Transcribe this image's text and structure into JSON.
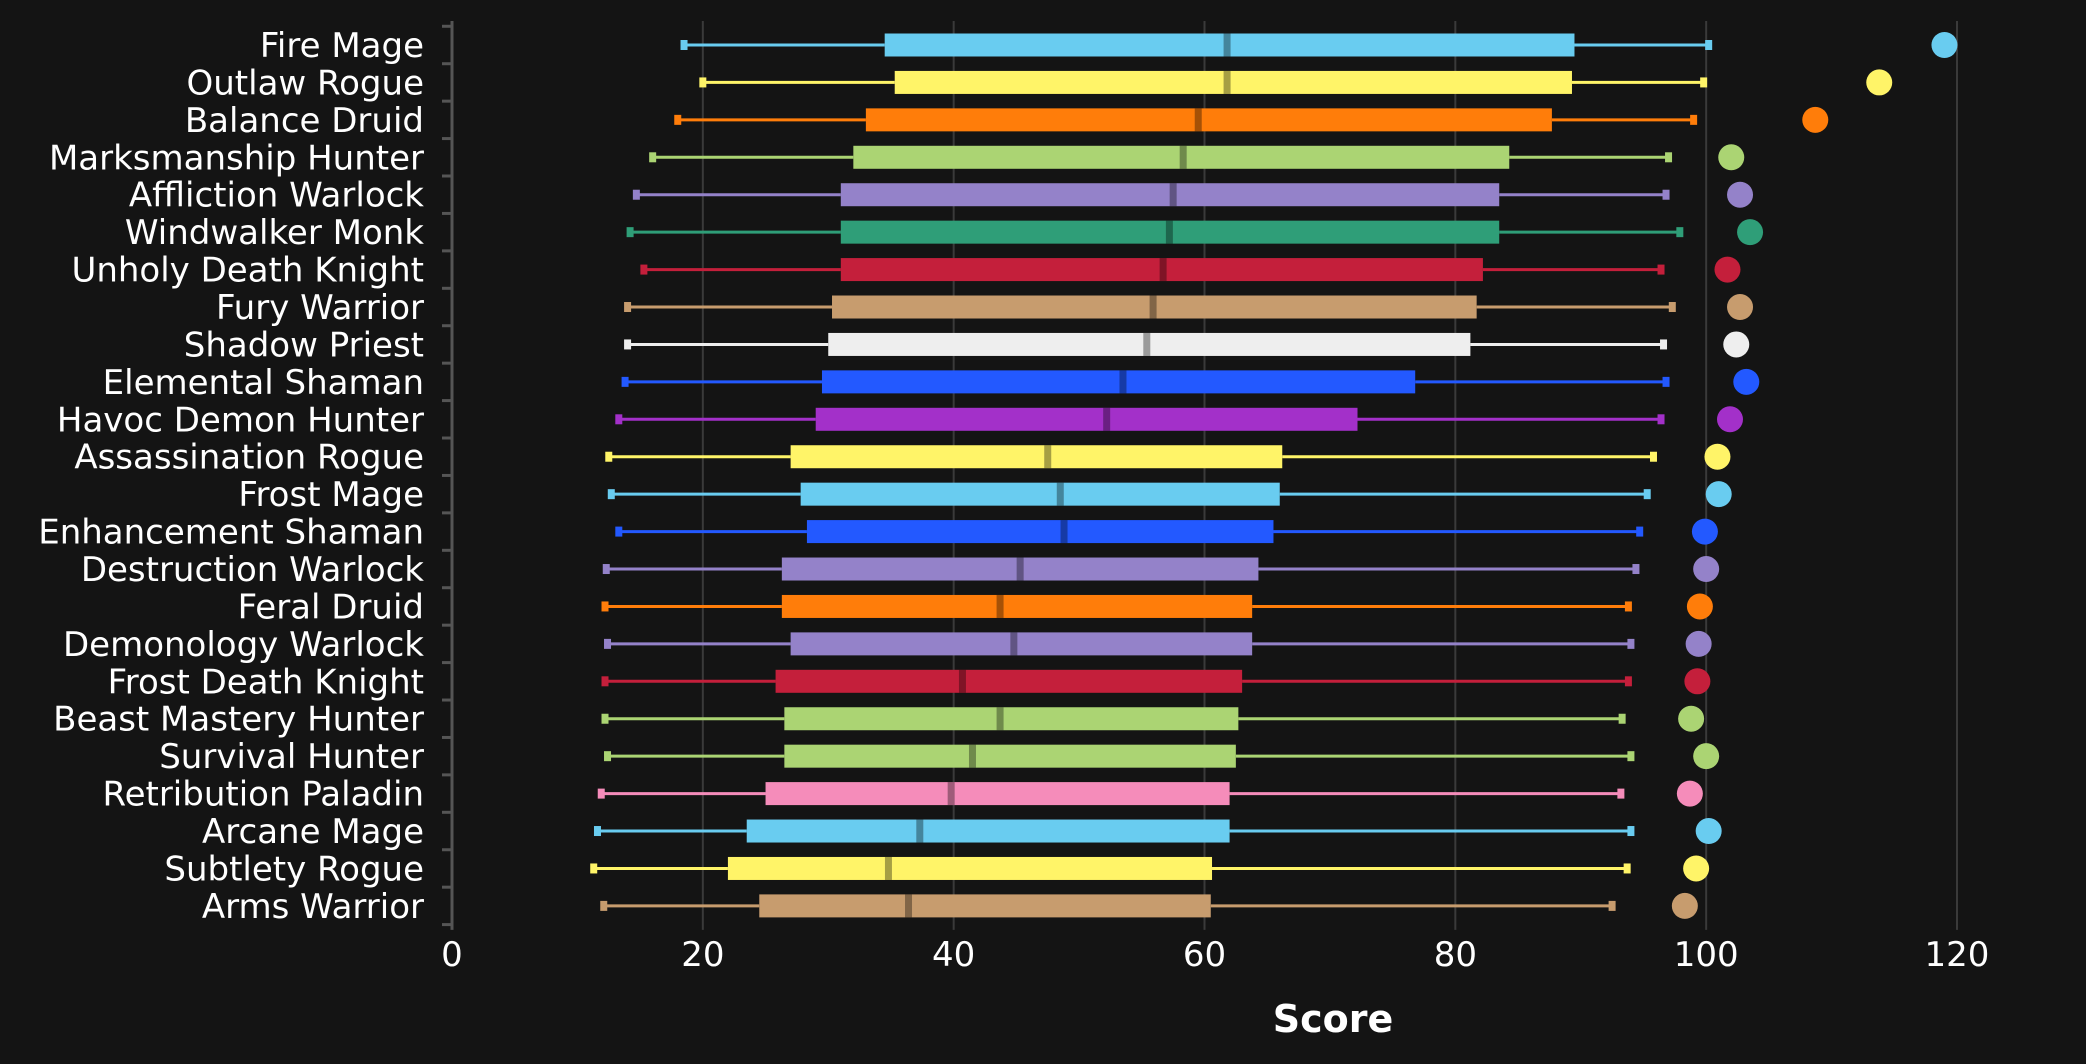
{
  "chart_data": {
    "type": "boxplot",
    "xlabel": "Score",
    "ylabel": "",
    "xlim": [
      0,
      120
    ],
    "xticks": [
      0,
      20,
      40,
      60,
      80,
      100,
      120
    ],
    "grid": "vertical",
    "legend": "none",
    "background": "#141414",
    "series": [
      {
        "name": "Fire Mage",
        "color": "#69ccf0",
        "min": 18.5,
        "q1": 34.5,
        "median": 61.8,
        "q3": 89.5,
        "max": 100.2,
        "top": 119.0
      },
      {
        "name": "Outlaw Rogue",
        "color": "#fff468",
        "min": 20.0,
        "q1": 35.3,
        "median": 61.8,
        "q3": 89.3,
        "max": 99.8,
        "top": 113.8
      },
      {
        "name": "Balance Druid",
        "color": "#ff7d0a",
        "min": 18.0,
        "q1": 33.0,
        "median": 59.5,
        "q3": 87.7,
        "max": 99.0,
        "top": 108.7
      },
      {
        "name": "Marksmanship Hunter",
        "color": "#abd473",
        "min": 16.0,
        "q1": 32.0,
        "median": 58.3,
        "q3": 84.3,
        "max": 97.0,
        "top": 102.0
      },
      {
        "name": "Affliction Warlock",
        "color": "#9482c9",
        "min": 14.7,
        "q1": 31.0,
        "median": 57.5,
        "q3": 83.5,
        "max": 96.8,
        "top": 102.7
      },
      {
        "name": "Windwalker Monk",
        "color": "#2f9e78",
        "min": 14.2,
        "q1": 31.0,
        "median": 57.2,
        "q3": 83.5,
        "max": 97.9,
        "top": 103.5
      },
      {
        "name": "Unholy Death Knight",
        "color": "#c41f3b",
        "min": 15.3,
        "q1": 31.0,
        "median": 56.7,
        "q3": 82.2,
        "max": 96.4,
        "top": 101.7
      },
      {
        "name": "Fury Warrior",
        "color": "#c79c6e",
        "min": 14.0,
        "q1": 30.3,
        "median": 55.9,
        "q3": 81.7,
        "max": 97.3,
        "top": 102.7
      },
      {
        "name": "Shadow Priest",
        "color": "#eeeeee",
        "min": 14.0,
        "q1": 30.0,
        "median": 55.4,
        "q3": 81.2,
        "max": 96.6,
        "top": 102.4
      },
      {
        "name": "Elemental Shaman",
        "color": "#2359ff",
        "min": 13.8,
        "q1": 29.5,
        "median": 53.5,
        "q3": 76.8,
        "max": 96.8,
        "top": 103.2
      },
      {
        "name": "Havoc Demon Hunter",
        "color": "#a330c9",
        "min": 13.3,
        "q1": 29.0,
        "median": 52.2,
        "q3": 72.2,
        "max": 96.4,
        "top": 101.9
      },
      {
        "name": "Assassination Rogue",
        "color": "#fff468",
        "min": 12.5,
        "q1": 27.0,
        "median": 47.5,
        "q3": 66.2,
        "max": 95.8,
        "top": 100.9
      },
      {
        "name": "Frost Mage",
        "color": "#69ccf0",
        "min": 12.7,
        "q1": 27.8,
        "median": 48.5,
        "q3": 66.0,
        "max": 95.3,
        "top": 101.0
      },
      {
        "name": "Enhancement Shaman",
        "color": "#2359ff",
        "min": 13.3,
        "q1": 28.3,
        "median": 48.8,
        "q3": 65.5,
        "max": 94.7,
        "top": 99.9
      },
      {
        "name": "Destruction Warlock",
        "color": "#9482c9",
        "min": 12.3,
        "q1": 26.3,
        "median": 45.3,
        "q3": 64.3,
        "max": 94.4,
        "top": 100.0
      },
      {
        "name": "Feral Druid",
        "color": "#ff7d0a",
        "min": 12.2,
        "q1": 26.3,
        "median": 43.7,
        "q3": 63.8,
        "max": 93.8,
        "top": 99.5
      },
      {
        "name": "Demonology Warlock",
        "color": "#9482c9",
        "min": 12.4,
        "q1": 27.0,
        "median": 44.8,
        "q3": 63.8,
        "max": 94.0,
        "top": 99.4
      },
      {
        "name": "Frost Death Knight",
        "color": "#c41f3b",
        "min": 12.2,
        "q1": 25.8,
        "median": 40.7,
        "q3": 63.0,
        "max": 93.8,
        "top": 99.3
      },
      {
        "name": "Beast Mastery Hunter",
        "color": "#abd473",
        "min": 12.2,
        "q1": 26.5,
        "median": 43.7,
        "q3": 62.7,
        "max": 93.3,
        "top": 98.8
      },
      {
        "name": "Survival Hunter",
        "color": "#abd473",
        "min": 12.4,
        "q1": 26.5,
        "median": 41.5,
        "q3": 62.5,
        "max": 94.0,
        "top": 100.0
      },
      {
        "name": "Retribution Paladin",
        "color": "#f58cba",
        "min": 11.9,
        "q1": 25.0,
        "median": 39.8,
        "q3": 62.0,
        "max": 93.2,
        "top": 98.7
      },
      {
        "name": "Arcane Mage",
        "color": "#69ccf0",
        "min": 11.6,
        "q1": 23.5,
        "median": 37.3,
        "q3": 62.0,
        "max": 94.0,
        "top": 100.2
      },
      {
        "name": "Subtlety Rogue",
        "color": "#fff468",
        "min": 11.3,
        "q1": 22.0,
        "median": 34.8,
        "q3": 60.6,
        "max": 93.7,
        "top": 99.2
      },
      {
        "name": "Arms Warrior",
        "color": "#c79c6e",
        "min": 12.1,
        "q1": 24.5,
        "median": 36.4,
        "q3": 60.5,
        "max": 92.5,
        "top": 98.3
      }
    ]
  }
}
